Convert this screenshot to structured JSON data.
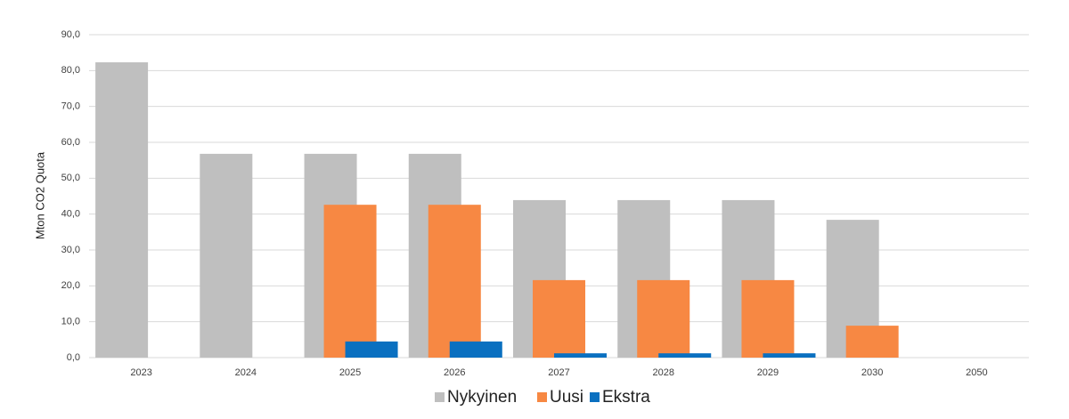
{
  "chart_data": {
    "type": "bar",
    "y_label": "Mton CO2 Quota",
    "categories": [
      "2023",
      "2024",
      "2025",
      "2026",
      "2027",
      "2028",
      "2029",
      "2030",
      "2050"
    ],
    "series": [
      {
        "name": "Nykyinen",
        "color": "#bfbfbf",
        "values": [
          82.3,
          56.8,
          56.8,
          56.8,
          43.9,
          43.9,
          43.9,
          38.4,
          0
        ]
      },
      {
        "name": "Uusi",
        "color": "#f78843",
        "values": [
          0,
          0,
          42.6,
          42.6,
          21.6,
          21.6,
          21.6,
          8.9,
          0
        ]
      },
      {
        "name": "Ekstra",
        "color": "#0a70c0",
        "values": [
          0,
          0,
          4.5,
          4.5,
          1.2,
          1.2,
          1.2,
          0,
          0
        ]
      }
    ],
    "ylim": [
      0,
      90
    ],
    "yticks": [
      {
        "value": 0,
        "label": "0,0"
      },
      {
        "value": 10,
        "label": "10,0"
      },
      {
        "value": 20,
        "label": "20,0"
      },
      {
        "value": 30,
        "label": "30,0"
      },
      {
        "value": 40,
        "label": "40,0"
      },
      {
        "value": 50,
        "label": "50,0"
      },
      {
        "value": 60,
        "label": "60,0"
      },
      {
        "value": 70,
        "label": "70,0"
      },
      {
        "value": 80,
        "label": "80,0"
      },
      {
        "value": 90,
        "label": "90,0"
      }
    ],
    "grid": true,
    "legend": "bottom"
  }
}
